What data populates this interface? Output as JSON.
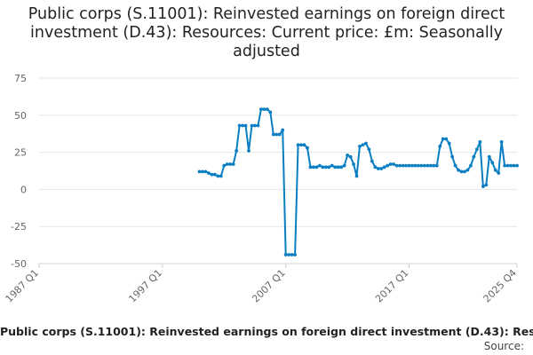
{
  "chart_data": {
    "type": "line",
    "title": "Public corps (S.11001): Reinvested earnings on foreign direct investment (D.43): Resources: Current price: £m: Seasonally adjusted",
    "series": [
      {
        "name": "Public corps (S.11001): Reinvested earnings on foreign direct investment (D.43): Resources: Current price: £m: Seasonally adjusted",
        "color": "#0a7ec2",
        "points": [
          [
            "2000 Q1",
            12
          ],
          [
            "2000 Q2",
            12
          ],
          [
            "2000 Q3",
            12
          ],
          [
            "2000 Q4",
            11
          ],
          [
            "2001 Q1",
            10
          ],
          [
            "2001 Q2",
            10
          ],
          [
            "2001 Q3",
            9
          ],
          [
            "2001 Q4",
            9
          ],
          [
            "2002 Q1",
            16
          ],
          [
            "2002 Q2",
            17
          ],
          [
            "2002 Q3",
            17
          ],
          [
            "2002 Q4",
            17
          ],
          [
            "2003 Q1",
            26
          ],
          [
            "2003 Q2",
            43
          ],
          [
            "2003 Q3",
            43
          ],
          [
            "2003 Q4",
            43
          ],
          [
            "2004 Q1",
            26
          ],
          [
            "2004 Q2",
            43
          ],
          [
            "2004 Q3",
            43
          ],
          [
            "2004 Q4",
            43
          ],
          [
            "2005 Q1",
            54
          ],
          [
            "2005 Q2",
            54
          ],
          [
            "2005 Q3",
            54
          ],
          [
            "2005 Q4",
            52
          ],
          [
            "2006 Q1",
            37
          ],
          [
            "2006 Q2",
            37
          ],
          [
            "2006 Q3",
            37
          ],
          [
            "2006 Q4",
            40
          ],
          [
            "2007 Q1",
            -44
          ],
          [
            "2007 Q2",
            -44
          ],
          [
            "2007 Q3",
            -44
          ],
          [
            "2007 Q4",
            -44
          ],
          [
            "2008 Q1",
            30
          ],
          [
            "2008 Q2",
            30
          ],
          [
            "2008 Q3",
            30
          ],
          [
            "2008 Q4",
            28
          ],
          [
            "2009 Q1",
            15
          ],
          [
            "2009 Q2",
            15
          ],
          [
            "2009 Q3",
            15
          ],
          [
            "2009 Q4",
            16
          ],
          [
            "2010 Q1",
            15
          ],
          [
            "2010 Q2",
            15
          ],
          [
            "2010 Q3",
            15
          ],
          [
            "2010 Q4",
            16
          ],
          [
            "2011 Q1",
            15
          ],
          [
            "2011 Q2",
            15
          ],
          [
            "2011 Q3",
            15
          ],
          [
            "2011 Q4",
            16
          ],
          [
            "2012 Q1",
            23
          ],
          [
            "2012 Q2",
            22
          ],
          [
            "2012 Q3",
            17
          ],
          [
            "2012 Q4",
            9
          ],
          [
            "2013 Q1",
            29
          ],
          [
            "2013 Q2",
            30
          ],
          [
            "2013 Q3",
            31
          ],
          [
            "2013 Q4",
            27
          ],
          [
            "2014 Q1",
            19
          ],
          [
            "2014 Q2",
            15
          ],
          [
            "2014 Q3",
            14
          ],
          [
            "2014 Q4",
            14
          ],
          [
            "2015 Q1",
            15
          ],
          [
            "2015 Q2",
            16
          ],
          [
            "2015 Q3",
            17
          ],
          [
            "2015 Q4",
            17
          ],
          [
            "2016 Q1",
            16
          ],
          [
            "2016 Q2",
            16
          ],
          [
            "2016 Q3",
            16
          ],
          [
            "2016 Q4",
            16
          ],
          [
            "2017 Q1",
            16
          ],
          [
            "2017 Q2",
            16
          ],
          [
            "2017 Q3",
            16
          ],
          [
            "2017 Q4",
            16
          ],
          [
            "2018 Q1",
            16
          ],
          [
            "2018 Q2",
            16
          ],
          [
            "2018 Q3",
            16
          ],
          [
            "2018 Q4",
            16
          ],
          [
            "2019 Q1",
            16
          ],
          [
            "2019 Q2",
            16
          ],
          [
            "2019 Q3",
            29
          ],
          [
            "2019 Q4",
            34
          ],
          [
            "2020 Q1",
            34
          ],
          [
            "2020 Q2",
            31
          ],
          [
            "2020 Q3",
            22
          ],
          [
            "2020 Q4",
            16
          ],
          [
            "2021 Q1",
            13
          ],
          [
            "2021 Q2",
            12
          ],
          [
            "2021 Q3",
            12
          ],
          [
            "2021 Q4",
            13
          ],
          [
            "2022 Q1",
            16
          ],
          [
            "2022 Q2",
            22
          ],
          [
            "2022 Q3",
            27
          ],
          [
            "2022 Q4",
            32
          ],
          [
            "2023 Q1",
            2
          ],
          [
            "2023 Q2",
            3
          ],
          [
            "2023 Q3",
            22
          ],
          [
            "2023 Q4",
            18
          ],
          [
            "2024 Q1",
            13
          ],
          [
            "2024 Q2",
            11
          ],
          [
            "2024 Q3",
            32
          ],
          [
            "2024 Q4",
            16
          ],
          [
            "2025 Q1",
            16
          ],
          [
            "2025 Q2",
            16
          ],
          [
            "2025 Q3",
            16
          ],
          [
            "2025 Q4",
            16
          ]
        ]
      }
    ],
    "x_axis": {
      "range": [
        "1987 Q1",
        "2025 Q4"
      ],
      "tick_labels": [
        "1987 Q1",
        "1997 Q1",
        "2007 Q1",
        "2017 Q1",
        "2025 Q4"
      ]
    },
    "y_axis": {
      "range": [
        -50,
        75
      ],
      "ticks": [
        -50,
        -25,
        0,
        25,
        50,
        75
      ]
    },
    "grid": "horizontal",
    "legend": "bottom",
    "source_label": "Source:"
  }
}
